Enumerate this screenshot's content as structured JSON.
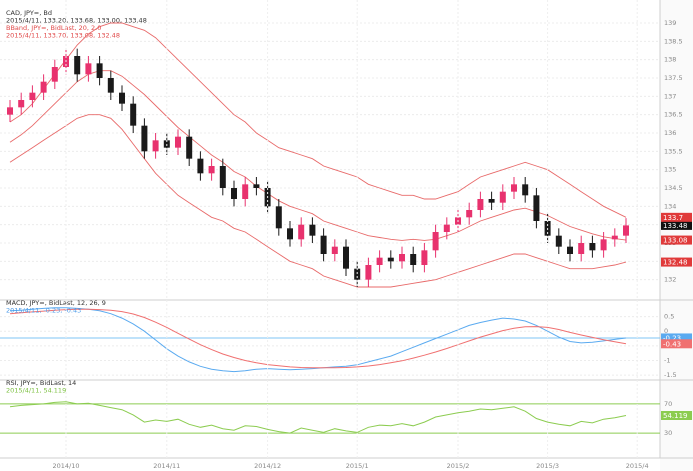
{
  "chart_data": [
    {
      "type": "candlestick",
      "legend": [
        {
          "text": "CAD, JPY=, Bd",
          "color": "#333333"
        },
        {
          "text": "2015/4/11, 133.20, 133.68, 133.00, 133.48",
          "color": "#333333"
        },
        {
          "text": "BBand, JPY=, BidLast, 20, 2.0",
          "color": "#e04848"
        },
        {
          "text": "2015/4/11, 133.70, 133.08, 132.48",
          "color": "#e04848"
        }
      ],
      "up_color": "#e8326e",
      "down_color": "#1a1a1a",
      "band_color": "#e86a6a",
      "grid_color": "#ececec",
      "open": [
        136.5,
        136.7,
        136.9,
        137.1,
        137.4,
        137.8,
        138.1,
        137.6,
        137.9,
        137.5,
        137.1,
        136.8,
        136.2,
        135.5,
        135.8,
        135.6,
        135.9,
        135.3,
        134.9,
        135.1,
        134.5,
        134.2,
        134.6,
        134.5,
        134.0,
        133.4,
        133.1,
        133.5,
        133.2,
        132.7,
        132.9,
        132.3,
        132.0,
        132.4,
        132.6,
        132.5,
        132.7,
        132.4,
        132.8,
        133.3,
        133.5,
        133.7,
        133.9,
        134.2,
        134.1,
        134.4,
        134.6,
        134.3,
        133.6,
        133.2,
        132.9,
        132.7,
        133.0,
        132.8,
        133.1,
        133.2
      ],
      "high": [
        136.9,
        137.1,
        137.3,
        137.6,
        138.0,
        138.3,
        138.3,
        138.1,
        138.1,
        137.7,
        137.3,
        137.0,
        136.4,
        136.0,
        136.0,
        136.1,
        136.1,
        135.5,
        135.3,
        135.3,
        134.7,
        134.8,
        134.8,
        134.7,
        134.2,
        133.6,
        133.7,
        133.7,
        133.4,
        133.1,
        133.1,
        132.5,
        132.6,
        132.8,
        132.8,
        132.9,
        132.9,
        133.0,
        133.5,
        133.7,
        133.9,
        134.1,
        134.4,
        134.4,
        134.6,
        134.8,
        134.8,
        134.5,
        133.8,
        133.4,
        133.1,
        133.2,
        133.2,
        133.3,
        133.4,
        133.68
      ],
      "low": [
        136.3,
        136.5,
        136.7,
        136.9,
        137.2,
        137.6,
        137.4,
        137.4,
        137.3,
        136.9,
        136.6,
        136.0,
        135.3,
        135.3,
        135.4,
        135.4,
        135.1,
        134.7,
        134.7,
        134.3,
        134.0,
        134.0,
        134.3,
        133.8,
        133.2,
        132.9,
        132.9,
        133.0,
        132.5,
        132.5,
        132.1,
        131.8,
        131.8,
        132.2,
        132.3,
        132.3,
        132.2,
        132.2,
        132.6,
        133.1,
        133.3,
        133.5,
        133.7,
        133.9,
        133.9,
        134.2,
        134.1,
        133.4,
        133.0,
        132.7,
        132.5,
        132.5,
        132.6,
        132.6,
        132.9,
        133.0
      ],
      "close": [
        136.7,
        136.9,
        137.1,
        137.4,
        137.8,
        138.1,
        137.6,
        137.9,
        137.5,
        137.1,
        136.8,
        136.2,
        135.5,
        135.8,
        135.6,
        135.9,
        135.3,
        134.9,
        135.1,
        134.5,
        134.2,
        134.6,
        134.5,
        134.0,
        133.4,
        133.1,
        133.5,
        133.2,
        132.7,
        132.9,
        132.3,
        132.0,
        132.4,
        132.6,
        132.5,
        132.7,
        132.4,
        132.8,
        133.3,
        133.5,
        133.7,
        133.9,
        134.2,
        134.1,
        134.4,
        134.6,
        134.3,
        133.6,
        133.2,
        132.9,
        132.7,
        133.0,
        132.8,
        133.1,
        133.2,
        133.48
      ],
      "bands": {
        "upper": [
          136.3,
          136.5,
          136.8,
          137.2,
          137.6,
          138.0,
          138.4,
          138.7,
          138.9,
          139.0,
          139.0,
          138.9,
          138.8,
          138.6,
          138.3,
          138.0,
          137.7,
          137.4,
          137.1,
          136.8,
          136.5,
          136.3,
          136.0,
          135.8,
          135.6,
          135.5,
          135.4,
          135.3,
          135.1,
          135.0,
          134.9,
          134.8,
          134.6,
          134.5,
          134.4,
          134.3,
          134.3,
          134.2,
          134.2,
          134.3,
          134.4,
          134.6,
          134.8,
          134.9,
          135.0,
          135.1,
          135.2,
          135.1,
          135.0,
          134.8,
          134.6,
          134.4,
          134.2,
          134.0,
          133.85,
          133.7
        ],
        "middle": [
          135.75,
          135.95,
          136.2,
          136.5,
          136.8,
          137.1,
          137.4,
          137.6,
          137.7,
          137.7,
          137.55,
          137.3,
          137.05,
          136.75,
          136.45,
          136.15,
          135.9,
          135.65,
          135.4,
          135.2,
          134.95,
          134.8,
          134.55,
          134.35,
          134.15,
          134.0,
          133.9,
          133.8,
          133.6,
          133.5,
          133.4,
          133.3,
          133.2,
          133.15,
          133.1,
          133.07,
          133.1,
          133.07,
          133.1,
          133.2,
          133.3,
          133.45,
          133.6,
          133.7,
          133.8,
          133.9,
          133.95,
          133.85,
          133.75,
          133.6,
          133.45,
          133.35,
          133.25,
          133.17,
          133.12,
          133.08
        ],
        "lower": [
          135.2,
          135.4,
          135.6,
          135.8,
          136.0,
          136.2,
          136.4,
          136.5,
          136.5,
          136.4,
          136.1,
          135.7,
          135.3,
          134.9,
          134.6,
          134.3,
          134.1,
          133.9,
          133.7,
          133.6,
          133.4,
          133.3,
          133.1,
          132.9,
          132.7,
          132.5,
          132.4,
          132.3,
          132.1,
          132.0,
          131.9,
          131.8,
          131.8,
          131.8,
          131.8,
          131.85,
          131.9,
          131.95,
          132.0,
          132.1,
          132.2,
          132.3,
          132.4,
          132.5,
          132.6,
          132.7,
          132.7,
          132.6,
          132.5,
          132.4,
          132.3,
          132.3,
          132.3,
          132.35,
          132.4,
          132.48
        ]
      },
      "ylim": [
        131.5,
        139.3
      ],
      "yticks": [
        132,
        132.5,
        133,
        133.5,
        134,
        134.5,
        135,
        135.5,
        136,
        136.5,
        137,
        137.5,
        138,
        138.5,
        139
      ]
    },
    {
      "type": "line",
      "legend": [
        {
          "text": "MACD, JPY=, BidLast, 12, 26, 9",
          "color": "#333333"
        },
        {
          "text": "2015/4/11, -0.23, -0.43",
          "color": "#4a9ae8"
        }
      ],
      "grid_color": "#ececec",
      "series": [
        {
          "color": "#5aaaf0",
          "values": [
            0.7,
            0.72,
            0.75,
            0.78,
            0.8,
            0.8,
            0.78,
            0.75,
            0.7,
            0.6,
            0.45,
            0.25,
            0.0,
            -0.3,
            -0.6,
            -0.85,
            -1.05,
            -1.2,
            -1.3,
            -1.35,
            -1.38,
            -1.35,
            -1.3,
            -1.28,
            -1.3,
            -1.32,
            -1.3,
            -1.28,
            -1.25,
            -1.22,
            -1.2,
            -1.15,
            -1.05,
            -0.95,
            -0.85,
            -0.7,
            -0.55,
            -0.4,
            -0.25,
            -0.1,
            0.05,
            0.2,
            0.3,
            0.38,
            0.45,
            0.42,
            0.35,
            0.2,
            0.0,
            -0.2,
            -0.35,
            -0.4,
            -0.38,
            -0.33,
            -0.28,
            -0.23
          ]
        },
        {
          "color": "#f07070",
          "values": [
            0.6,
            0.63,
            0.66,
            0.69,
            0.72,
            0.74,
            0.75,
            0.75,
            0.74,
            0.72,
            0.67,
            0.59,
            0.47,
            0.31,
            0.13,
            -0.07,
            -0.27,
            -0.46,
            -0.63,
            -0.78,
            -0.9,
            -1.0,
            -1.08,
            -1.14,
            -1.18,
            -1.22,
            -1.24,
            -1.25,
            -1.25,
            -1.25,
            -1.24,
            -1.22,
            -1.19,
            -1.14,
            -1.08,
            -1.01,
            -0.92,
            -0.82,
            -0.71,
            -0.59,
            -0.46,
            -0.33,
            -0.2,
            -0.09,
            0.02,
            0.1,
            0.15,
            0.16,
            0.13,
            0.06,
            -0.04,
            -0.13,
            -0.21,
            -0.29,
            -0.36,
            -0.43
          ]
        }
      ],
      "ylim": [
        -1.6,
        1.0
      ],
      "yticks": [
        -1.5,
        -1,
        -0.5,
        0,
        0.5
      ]
    },
    {
      "type": "line",
      "legend": [
        {
          "text": "RSI, JPY=, BidLast, 14",
          "color": "#333333"
        },
        {
          "text": "2015/4/11, 54.119",
          "color": "#7cc040"
        }
      ],
      "grid_color": "#8ccc50",
      "series": [
        {
          "color": "#8ccc50",
          "values": [
            66,
            68,
            69,
            70,
            72,
            73,
            70,
            71,
            68,
            65,
            62,
            55,
            45,
            48,
            46,
            49,
            42,
            38,
            41,
            36,
            34,
            40,
            39,
            35,
            32,
            30,
            37,
            34,
            31,
            36,
            33,
            31,
            38,
            41,
            40,
            43,
            40,
            45,
            52,
            55,
            58,
            60,
            63,
            62,
            64,
            66,
            60,
            50,
            45,
            42,
            40,
            46,
            44,
            49,
            51,
            54.119
          ]
        }
      ],
      "ylim": [
        0,
        100
      ],
      "yticks": [
        30,
        70
      ],
      "xticks": [
        {
          "value": 5,
          "label": "2014/10"
        },
        {
          "value": 14,
          "label": "2014/11"
        },
        {
          "value": 23,
          "label": "2014/12"
        },
        {
          "value": 31,
          "label": "2015/1"
        },
        {
          "value": 40,
          "label": "2015/2"
        },
        {
          "value": 48,
          "label": "2015/3"
        },
        {
          "value": 56,
          "label": "2015/4"
        }
      ]
    }
  ]
}
